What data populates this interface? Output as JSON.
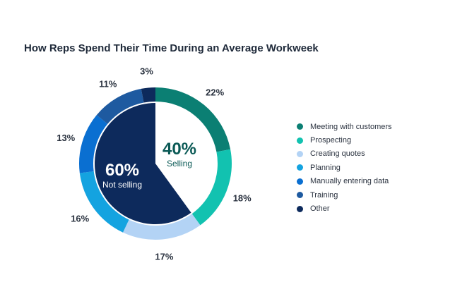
{
  "chart_data": {
    "type": "pie",
    "title": "How Reps Spend Their Time During an Average Workweek",
    "slices": [
      {
        "name": "Meeting with customers",
        "value": 22,
        "label": "22%",
        "color": "#0b7f73"
      },
      {
        "name": "Prospecting",
        "value": 18,
        "label": "18%",
        "color": "#12c2b0"
      },
      {
        "name": "Creating quotes",
        "value": 17,
        "label": "17%",
        "color": "#b3d3f5"
      },
      {
        "name": "Planning",
        "value": 16,
        "label": "16%",
        "color": "#14a3e0"
      },
      {
        "name": "Manually entering data",
        "value": 13,
        "label": "13%",
        "color": "#0a6fd1"
      },
      {
        "name": "Training",
        "value": 11,
        "label": "11%",
        "color": "#1e5aa0"
      },
      {
        "name": "Other",
        "value": 3,
        "label": "3%",
        "color": "#0d2a5c"
      }
    ],
    "groups": [
      {
        "value_label": "40%",
        "name": "Selling",
        "value": 40
      },
      {
        "value_label": "60%",
        "name": "Not selling",
        "value": 60
      }
    ],
    "legend_position": "right",
    "colors": {
      "selling_fill": "#ffffff",
      "not_selling_fill": "#0d2a5c",
      "selling_text": "#0b5a56",
      "not_selling_text": "#ffffff"
    }
  }
}
